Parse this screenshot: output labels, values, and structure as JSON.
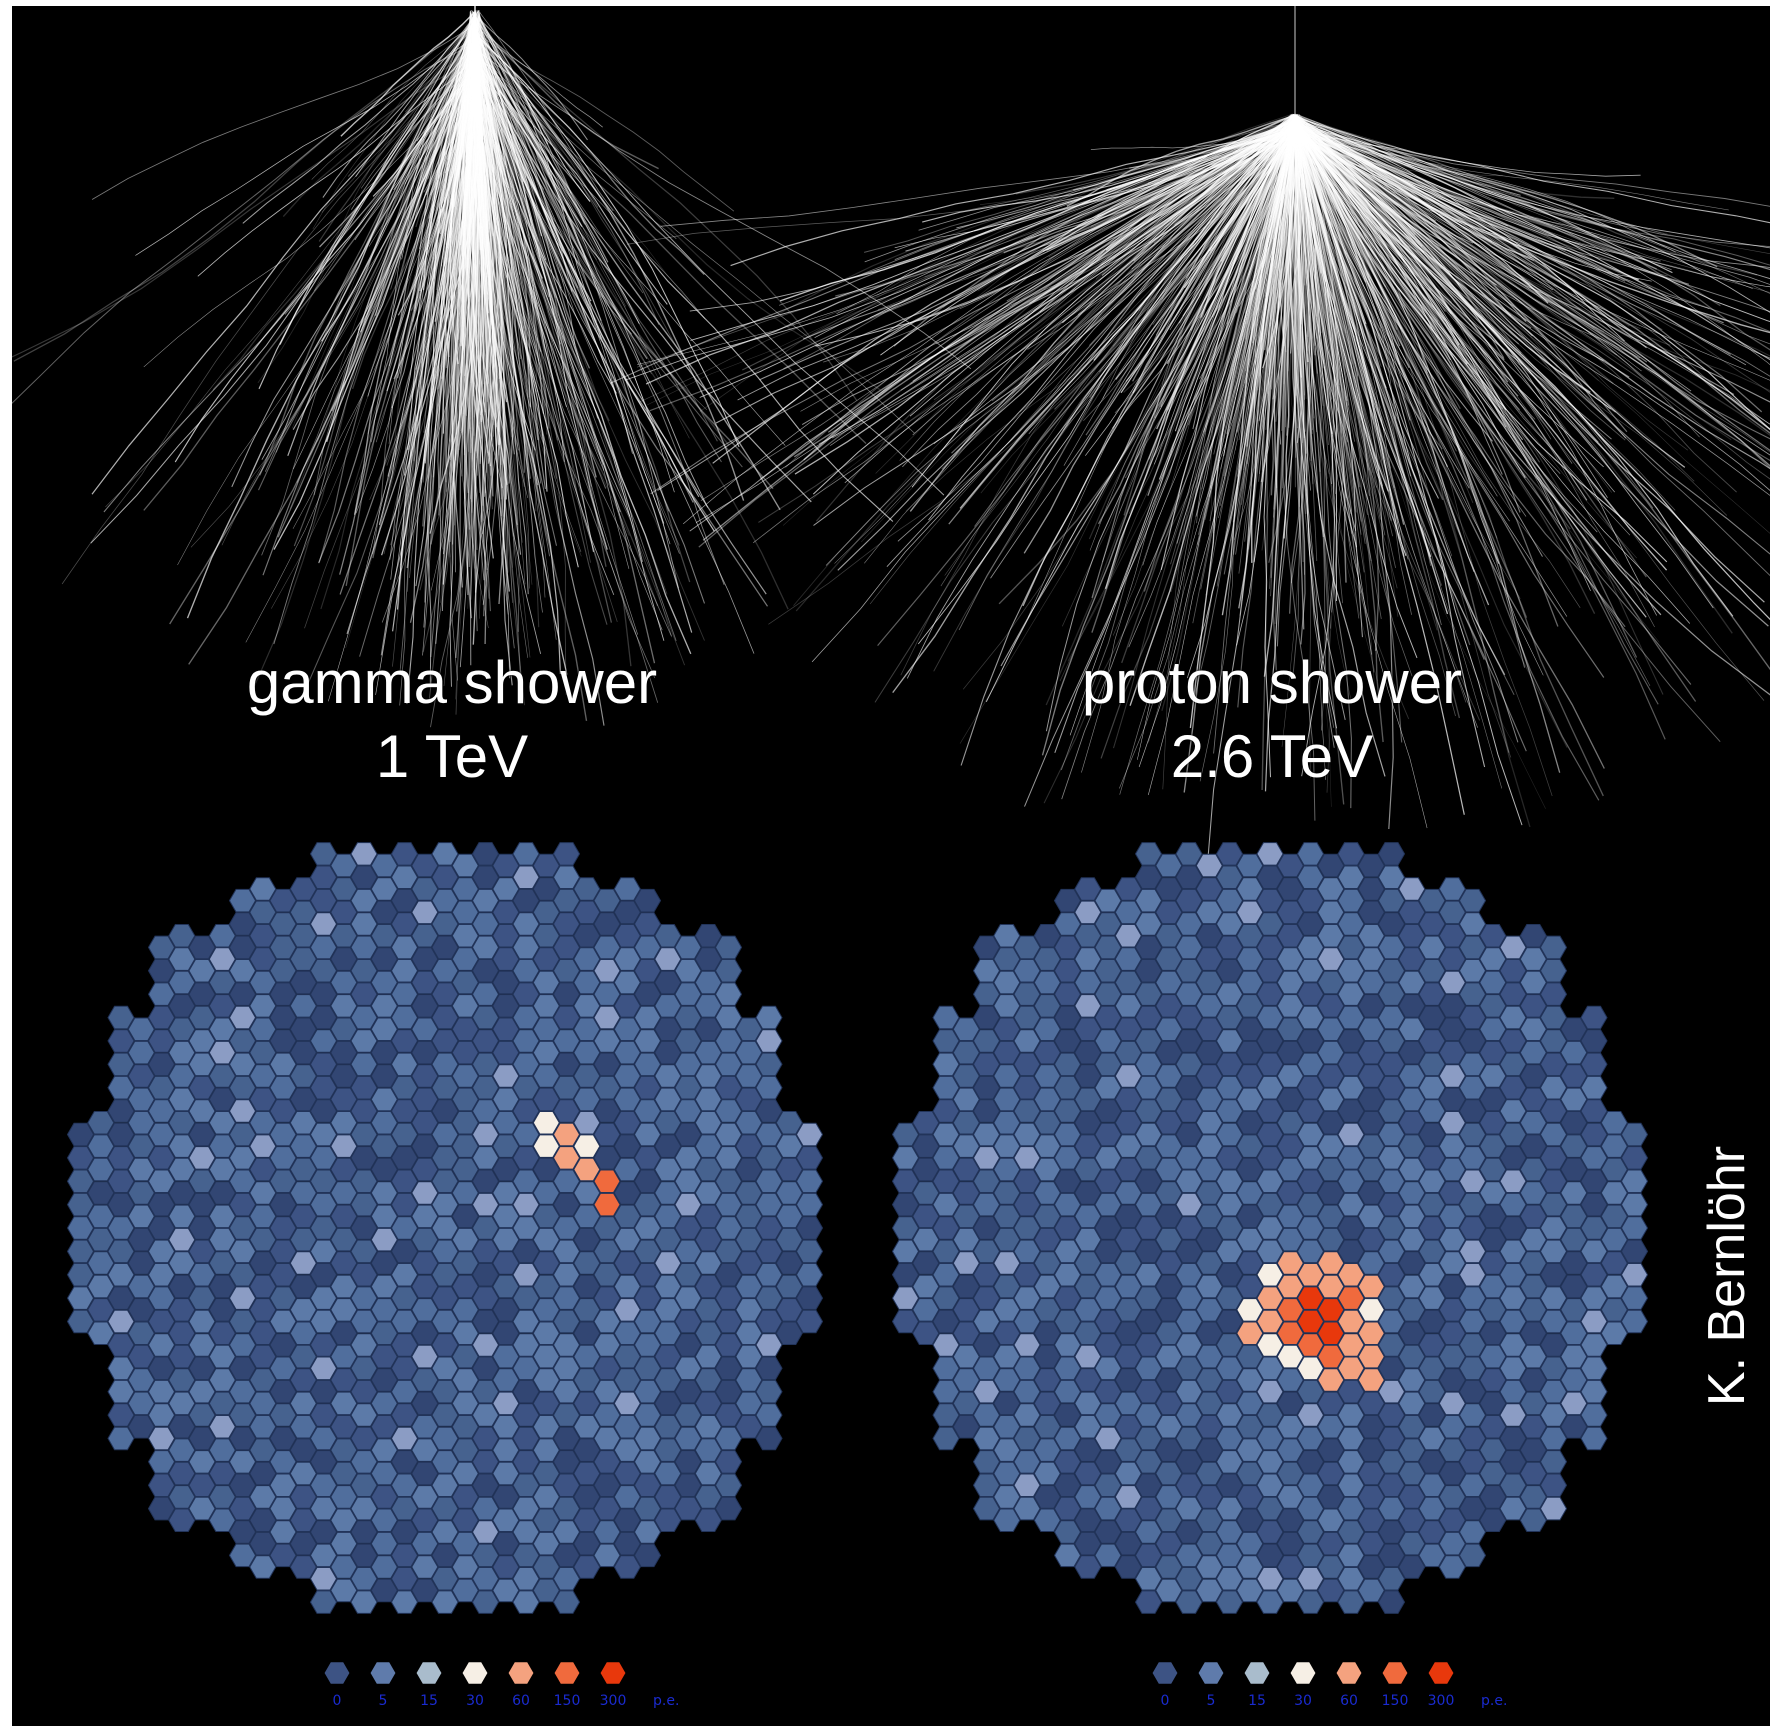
{
  "panels": [
    {
      "id": "gamma",
      "title": "gamma shower",
      "energy": "1 TeV",
      "shower_type": "narrow",
      "hot_pixels": "elongated streak"
    },
    {
      "id": "proton",
      "title": "proton shower",
      "energy": "2.6 TeV",
      "shower_type": "wide",
      "hot_pixels": "irregular blob"
    }
  ],
  "credit": "K. Bernlöhr",
  "legend": {
    "labels": [
      "0",
      "5",
      "15",
      "30",
      "60",
      "150",
      "300"
    ],
    "unit": "p.e.",
    "colors": [
      "#3d5384",
      "#5f7bab",
      "#a9bccc",
      "#f6efe5",
      "#f4a27f",
      "#f06a3d",
      "#e8380c"
    ]
  },
  "colors": {
    "background": "#000000",
    "camera_base": "#46628f",
    "pixel_outline": "#22345a",
    "shower_tracks": "#ffffff"
  }
}
